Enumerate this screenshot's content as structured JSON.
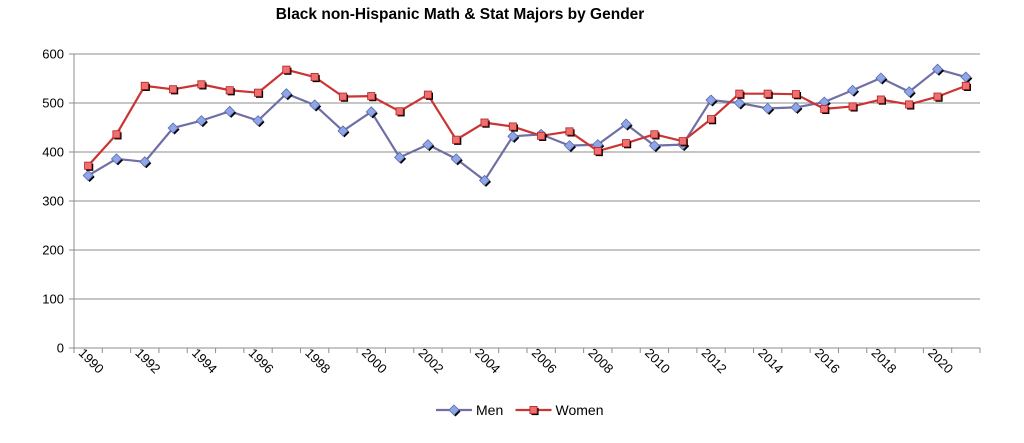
{
  "chart_data": {
    "type": "line",
    "title": "Black non-Hispanic Math & Stat Majors by Gender",
    "x": [
      1990,
      1991,
      1992,
      1993,
      1994,
      1995,
      1996,
      1997,
      1998,
      1999,
      2000,
      2001,
      2002,
      2003,
      2004,
      2005,
      2006,
      2007,
      2008,
      2009,
      2010,
      2011,
      2012,
      2013,
      2014,
      2015,
      2016,
      2017,
      2018,
      2019,
      2020,
      2021
    ],
    "x_tick_labels": [
      "1990",
      "1992",
      "1994",
      "1996",
      "1998",
      "2000",
      "2002",
      "2004",
      "2006",
      "2008",
      "2010",
      "2012",
      "2014",
      "2016",
      "2018",
      "2020"
    ],
    "y_ticks": [
      0,
      100,
      200,
      300,
      400,
      500,
      600
    ],
    "ylim": [
      0,
      600
    ],
    "grid": true,
    "legend_position": "bottom",
    "series": [
      {
        "name": "Men",
        "color": "#6F6FA6",
        "marker_color": "#8EA6E8",
        "marker": "diamond",
        "values": [
          352,
          386,
          380,
          449,
          464,
          483,
          464,
          519,
          496,
          443,
          482,
          389,
          415,
          386,
          342,
          432,
          436,
          413,
          415,
          457,
          413,
          415,
          506,
          500,
          489,
          491,
          502,
          526,
          551,
          523,
          569,
          553
        ]
      },
      {
        "name": "Women",
        "color": "#CC3333",
        "marker_color": "#F07070",
        "marker": "square",
        "values": [
          372,
          436,
          535,
          528,
          538,
          526,
          521,
          568,
          553,
          513,
          514,
          483,
          517,
          425,
          460,
          452,
          433,
          442,
          402,
          418,
          436,
          422,
          467,
          519,
          519,
          518,
          488,
          493,
          507,
          497,
          513,
          535
        ]
      }
    ]
  }
}
